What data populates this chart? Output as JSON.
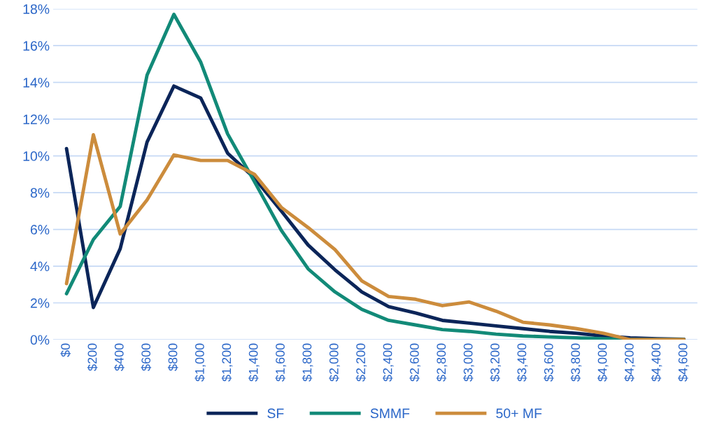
{
  "chart_data": {
    "type": "line",
    "categories": [
      "$0",
      "$200",
      "$400",
      "$600",
      "$800",
      "$1,000",
      "$1,200",
      "$1,400",
      "$1,600",
      "$1,800",
      "$2,000",
      "$2,200",
      "$2,400",
      "$2,600",
      "$2,800",
      "$3,000",
      "$3,200",
      "$3,400",
      "$3,600",
      "$3,800",
      "$4,000",
      "$4,200",
      "$4,400",
      "$4,600"
    ],
    "series": [
      {
        "name": "SF",
        "color": "#0b2559",
        "values": [
          10.4,
          1.75,
          4.95,
          10.75,
          13.8,
          13.15,
          10.15,
          8.8,
          7.0,
          5.15,
          3.8,
          2.6,
          1.8,
          1.45,
          1.05,
          0.9,
          0.75,
          0.6,
          0.45,
          0.35,
          0.2,
          0.1,
          0.05,
          0.02
        ]
      },
      {
        "name": "SMMF",
        "color": "#128a78",
        "values": [
          2.5,
          5.45,
          7.25,
          14.4,
          17.7,
          15.1,
          11.2,
          8.6,
          5.95,
          3.85,
          2.6,
          1.65,
          1.05,
          0.8,
          0.55,
          0.45,
          0.3,
          0.2,
          0.15,
          0.1,
          0.05,
          0.0,
          0.0,
          0.0
        ]
      },
      {
        "name": "50+ MF",
        "color": "#cc8c3c",
        "values": [
          3.05,
          11.15,
          5.75,
          7.6,
          10.05,
          9.75,
          9.75,
          9.0,
          7.2,
          6.1,
          4.9,
          3.2,
          2.35,
          2.2,
          1.85,
          2.05,
          1.55,
          0.95,
          0.8,
          0.6,
          0.35,
          0.0,
          0.0,
          0.0
        ]
      }
    ],
    "ylim": [
      0,
      18
    ],
    "yticks": [
      {
        "value": 0,
        "label": "0%"
      },
      {
        "value": 2,
        "label": "2%"
      },
      {
        "value": 4,
        "label": "4%"
      },
      {
        "value": 6,
        "label": "6%"
      },
      {
        "value": 8,
        "label": "8%"
      },
      {
        "value": 10,
        "label": "10%"
      },
      {
        "value": 12,
        "label": "12%"
      },
      {
        "value": 14,
        "label": "14%"
      },
      {
        "value": 16,
        "label": "16%"
      },
      {
        "value": 18,
        "label": "18%"
      }
    ],
    "grid": "y",
    "legend": "bottom",
    "marker": "none",
    "line_style": "solid"
  }
}
